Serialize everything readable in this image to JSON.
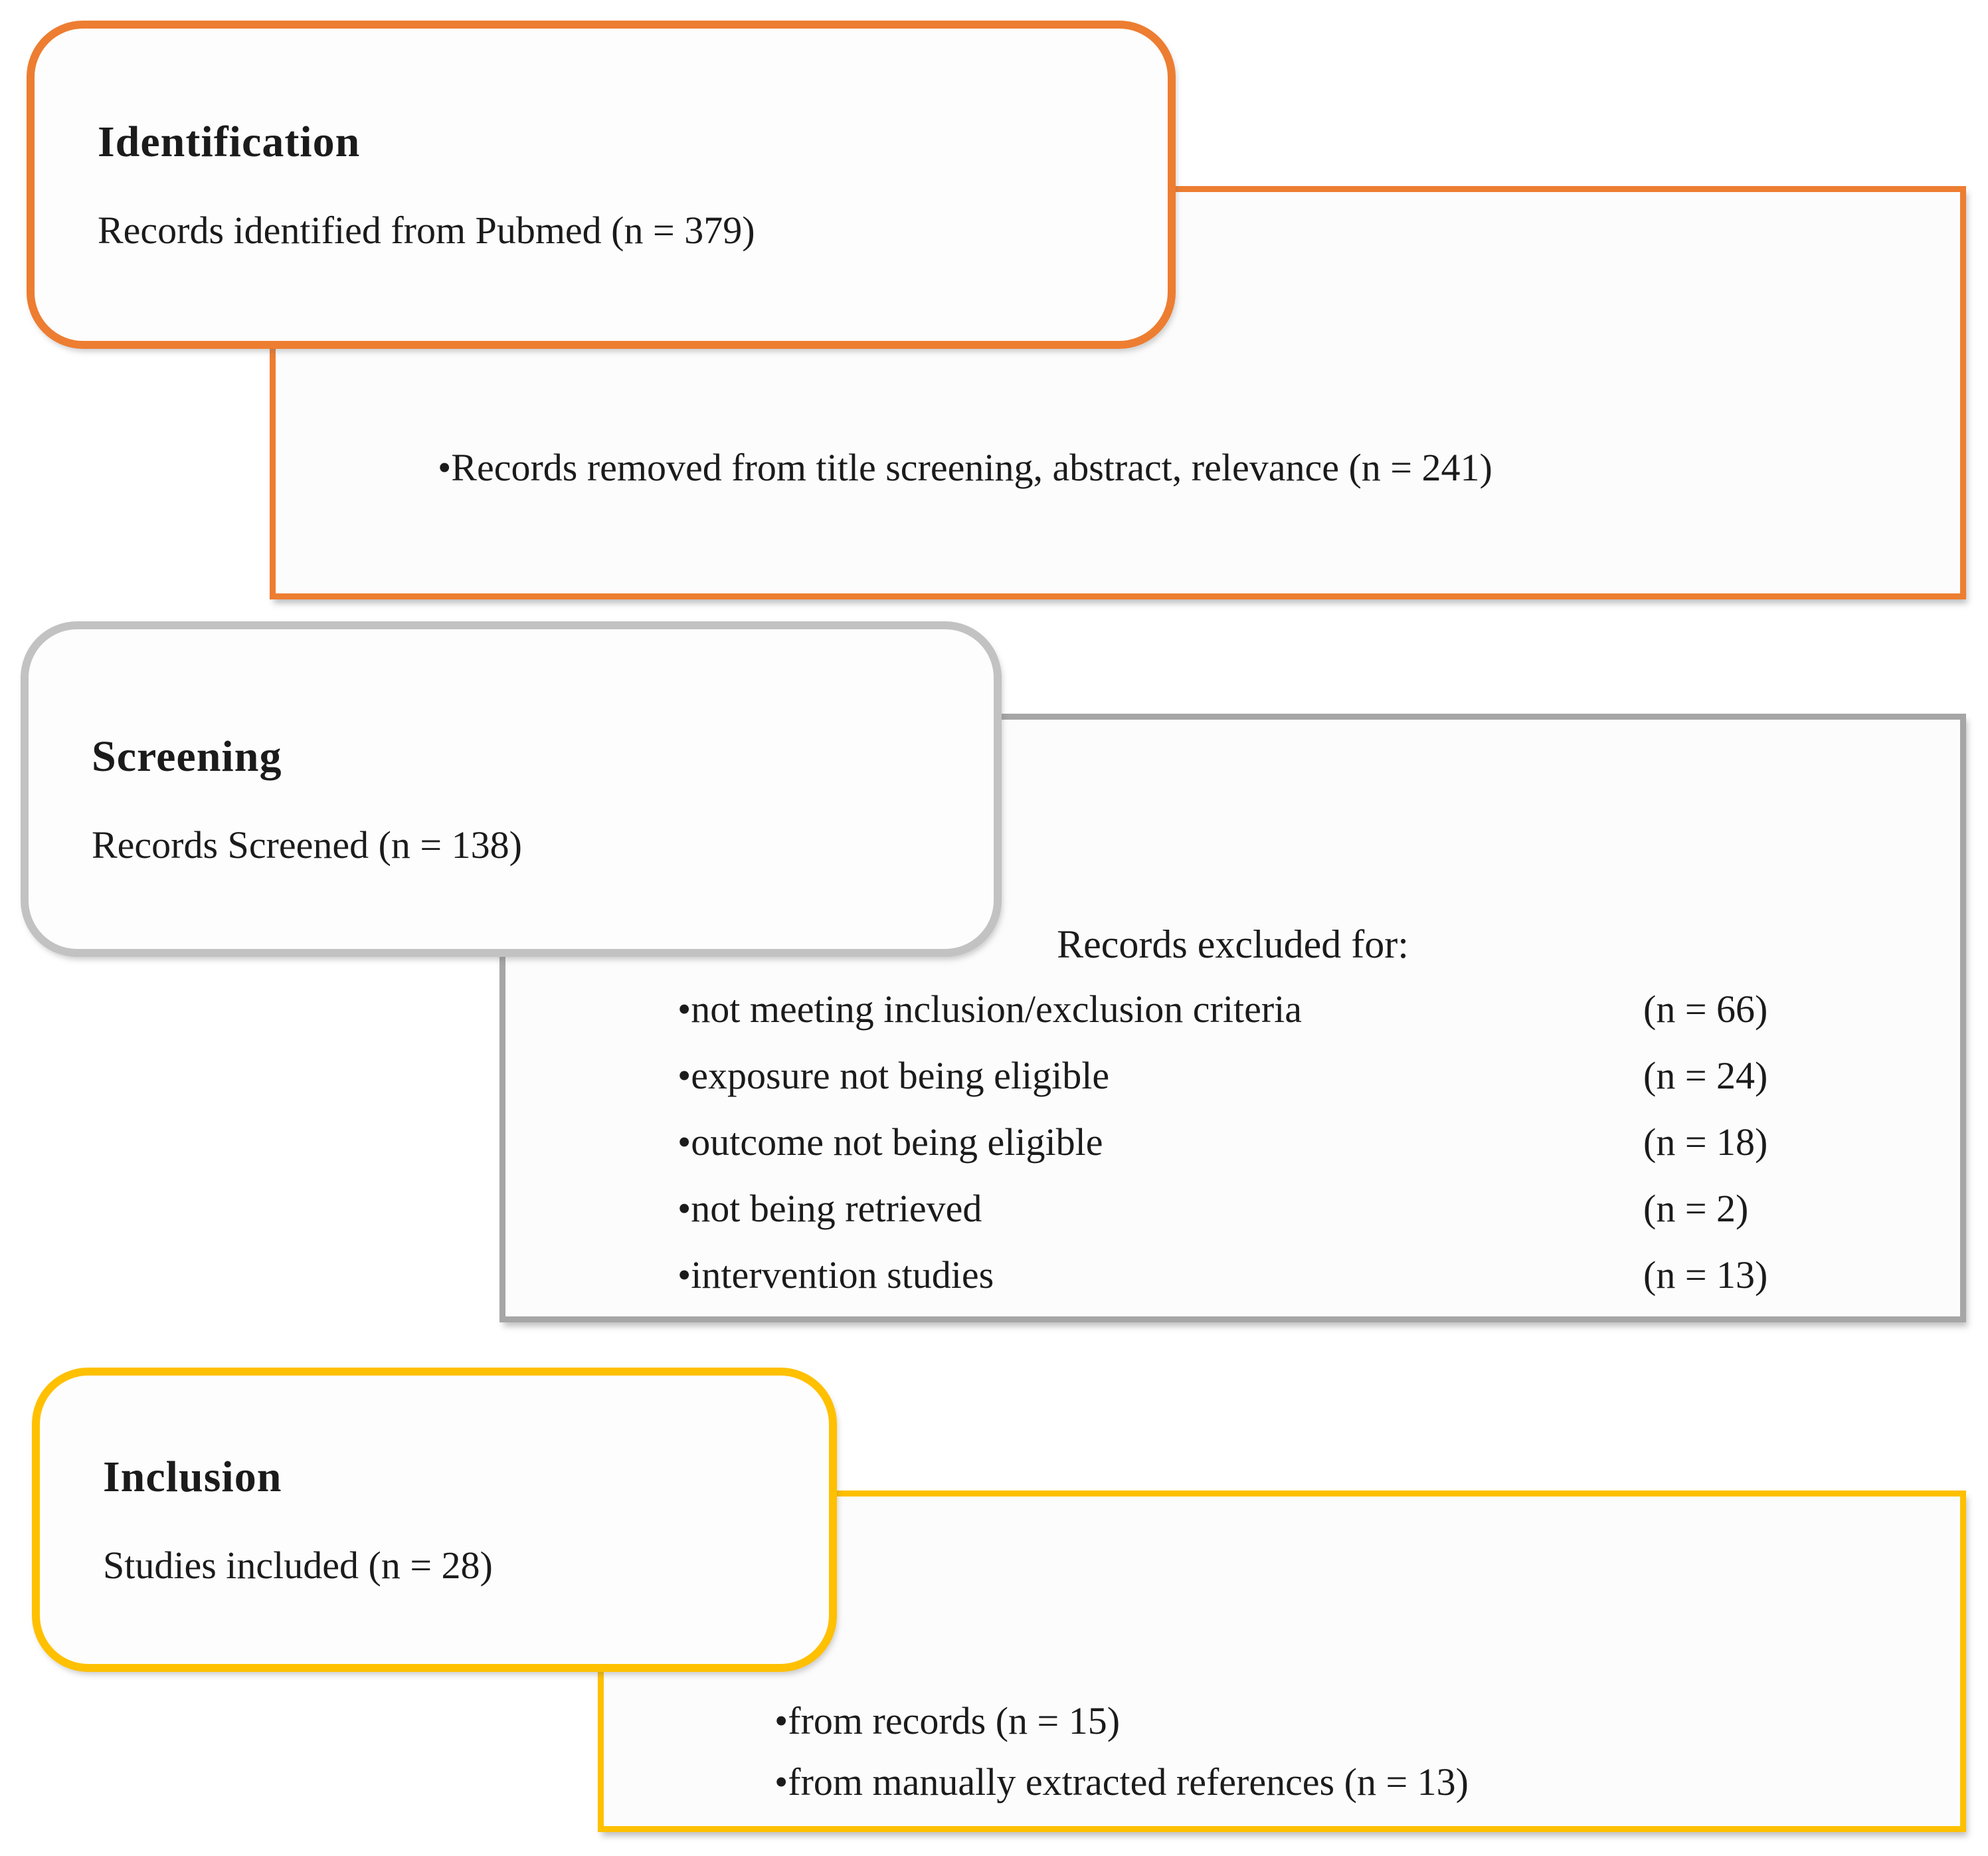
{
  "colors": {
    "identification_accent": "#ED7D31",
    "screening_box_accent": "#C2C2C2",
    "screening_panel_accent": "#A6A6A6",
    "inclusion_accent": "#FFC000",
    "text": "#1B1B1B"
  },
  "stages": {
    "identification": {
      "title": "Identification",
      "summary": "Records identified from Pubmed (n = 379)",
      "removed_note": "•Records removed from title screening, abstract, relevance (n = 241)"
    },
    "screening": {
      "title": "Screening",
      "summary": "Records Screened (n = 138)",
      "excluded_header": "Records excluded for:",
      "excluded_items": [
        {
          "label": "•not meeting inclusion/exclusion criteria",
          "count": "(n = 66)"
        },
        {
          "label": "•exposure not being eligible",
          "count": "(n = 24)"
        },
        {
          "label": "•outcome not being eligible",
          "count": "(n = 18)"
        },
        {
          "label": "•not being retrieved",
          "count": "(n = 2)"
        },
        {
          "label": "•intervention studies",
          "count": "(n = 13)"
        }
      ]
    },
    "inclusion": {
      "title": "Inclusion",
      "summary": "Studies included (n = 28)",
      "sources": [
        "•from records (n = 15)",
        "•from manually extracted references (n = 13)"
      ]
    }
  }
}
